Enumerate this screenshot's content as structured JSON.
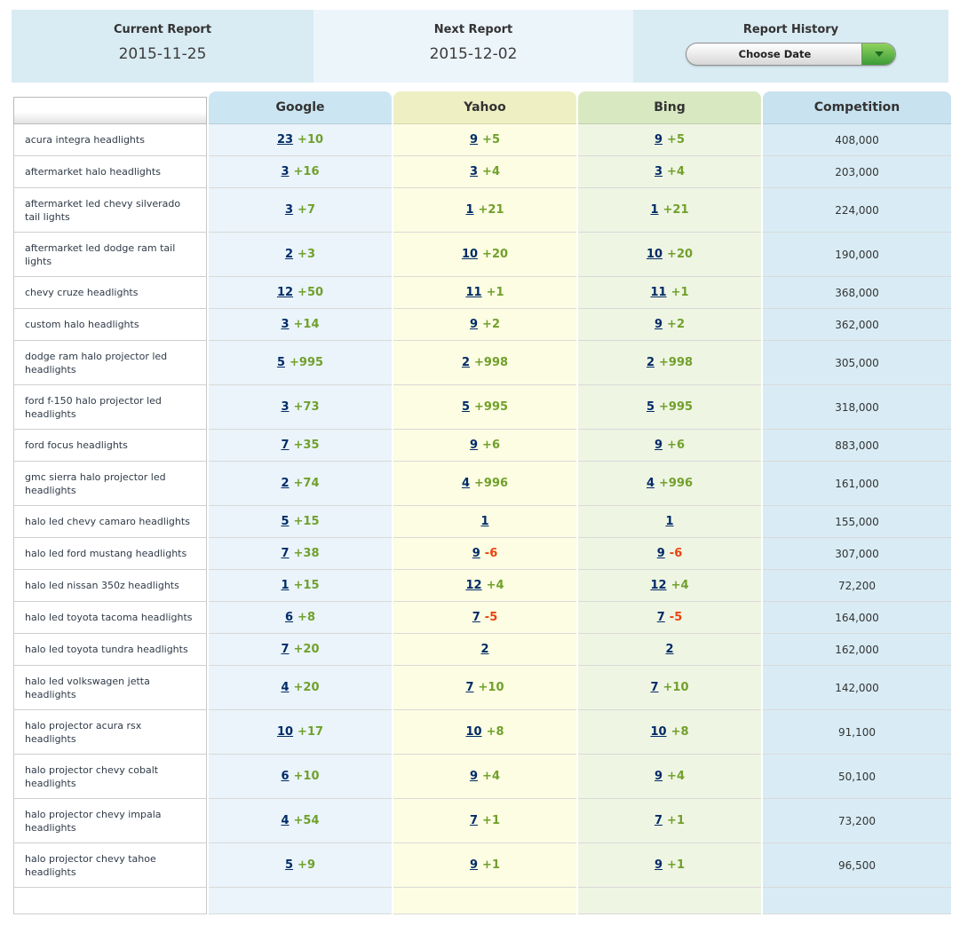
{
  "report_bar": {
    "current": {
      "label": "Current Report",
      "date": "2015-11-25"
    },
    "next": {
      "label": "Next Report",
      "date": "2015-12-02"
    },
    "history": {
      "label": "Report History",
      "button_label": "Choose Date"
    }
  },
  "colors": {
    "bar_panel_dark": "#d9ebf3",
    "bar_panel_light": "#ecf5fa",
    "google_header": "#cbe6f2",
    "yahoo_header": "#eef0c3",
    "bing_header": "#d8e8c1",
    "competition_header": "#c8e2ef",
    "google_cell": "#eaf4fa",
    "yahoo_cell": "#fcfde2",
    "bing_cell": "#eff5e3",
    "competition_cell": "#d9ecf5",
    "rank_link": "#002b67",
    "positive_change": "#71a02c",
    "negative_change": "#e8430f",
    "choose_date_green": "#3c9c38"
  },
  "table": {
    "columns": [
      "",
      "Google",
      "Yahoo",
      "Bing",
      "Competition"
    ],
    "rows": [
      {
        "keyword": "acura integra headlights",
        "google": {
          "rank": "23",
          "change": "+10"
        },
        "yahoo": {
          "rank": "9",
          "change": "+5"
        },
        "bing": {
          "rank": "9",
          "change": "+5"
        },
        "competition": "408,000"
      },
      {
        "keyword": "aftermarket halo headlights",
        "google": {
          "rank": "3",
          "change": "+16"
        },
        "yahoo": {
          "rank": "3",
          "change": "+4"
        },
        "bing": {
          "rank": "3",
          "change": "+4"
        },
        "competition": "203,000"
      },
      {
        "keyword": "aftermarket led chevy silverado tail lights",
        "google": {
          "rank": "3",
          "change": "+7"
        },
        "yahoo": {
          "rank": "1",
          "change": "+21"
        },
        "bing": {
          "rank": "1",
          "change": "+21"
        },
        "competition": "224,000"
      },
      {
        "keyword": "aftermarket led dodge ram tail lights",
        "google": {
          "rank": "2",
          "change": "+3"
        },
        "yahoo": {
          "rank": "10",
          "change": "+20"
        },
        "bing": {
          "rank": "10",
          "change": "+20"
        },
        "competition": "190,000"
      },
      {
        "keyword": "chevy cruze headlights",
        "google": {
          "rank": "12",
          "change": "+50"
        },
        "yahoo": {
          "rank": "11",
          "change": "+1"
        },
        "bing": {
          "rank": "11",
          "change": "+1"
        },
        "competition": "368,000"
      },
      {
        "keyword": "custom halo headlights",
        "google": {
          "rank": "3",
          "change": "+14"
        },
        "yahoo": {
          "rank": "9",
          "change": "+2"
        },
        "bing": {
          "rank": "9",
          "change": "+2"
        },
        "competition": "362,000"
      },
      {
        "keyword": "dodge ram halo projector led headlights",
        "google": {
          "rank": "5",
          "change": "+995"
        },
        "yahoo": {
          "rank": "2",
          "change": "+998"
        },
        "bing": {
          "rank": "2",
          "change": "+998"
        },
        "competition": "305,000"
      },
      {
        "keyword": "ford f-150 halo projector led headlights",
        "google": {
          "rank": "3",
          "change": "+73"
        },
        "yahoo": {
          "rank": "5",
          "change": "+995"
        },
        "bing": {
          "rank": "5",
          "change": "+995"
        },
        "competition": "318,000"
      },
      {
        "keyword": "ford focus headlights",
        "google": {
          "rank": "7",
          "change": "+35"
        },
        "yahoo": {
          "rank": "9",
          "change": "+6"
        },
        "bing": {
          "rank": "9",
          "change": "+6"
        },
        "competition": "883,000"
      },
      {
        "keyword": "gmc sierra halo projector led headlights",
        "google": {
          "rank": "2",
          "change": "+74"
        },
        "yahoo": {
          "rank": "4",
          "change": "+996"
        },
        "bing": {
          "rank": "4",
          "change": "+996"
        },
        "competition": "161,000"
      },
      {
        "keyword": "halo led chevy camaro headlights",
        "google": {
          "rank": "5",
          "change": "+15"
        },
        "yahoo": {
          "rank": "1",
          "change": ""
        },
        "bing": {
          "rank": "1",
          "change": ""
        },
        "competition": "155,000"
      },
      {
        "keyword": "halo led ford mustang headlights",
        "google": {
          "rank": "7",
          "change": "+38"
        },
        "yahoo": {
          "rank": "9",
          "change": "-6"
        },
        "bing": {
          "rank": "9",
          "change": "-6"
        },
        "competition": "307,000"
      },
      {
        "keyword": "halo led nissan 350z headlights",
        "google": {
          "rank": "1",
          "change": "+15"
        },
        "yahoo": {
          "rank": "12",
          "change": "+4"
        },
        "bing": {
          "rank": "12",
          "change": "+4"
        },
        "competition": "72,200"
      },
      {
        "keyword": "halo led toyota tacoma headlights",
        "google": {
          "rank": "6",
          "change": "+8"
        },
        "yahoo": {
          "rank": "7",
          "change": "-5"
        },
        "bing": {
          "rank": "7",
          "change": "-5"
        },
        "competition": "164,000"
      },
      {
        "keyword": "halo led toyota tundra headlights",
        "google": {
          "rank": "7",
          "change": "+20"
        },
        "yahoo": {
          "rank": "2",
          "change": ""
        },
        "bing": {
          "rank": "2",
          "change": ""
        },
        "competition": "162,000"
      },
      {
        "keyword": "halo led volkswagen jetta headlights",
        "google": {
          "rank": "4",
          "change": "+20"
        },
        "yahoo": {
          "rank": "7",
          "change": "+10"
        },
        "bing": {
          "rank": "7",
          "change": "+10"
        },
        "competition": "142,000"
      },
      {
        "keyword": "halo projector acura rsx headlights",
        "google": {
          "rank": "10",
          "change": "+17"
        },
        "yahoo": {
          "rank": "10",
          "change": "+8"
        },
        "bing": {
          "rank": "10",
          "change": "+8"
        },
        "competition": "91,100"
      },
      {
        "keyword": "halo projector chevy cobalt headlights",
        "google": {
          "rank": "6",
          "change": "+10"
        },
        "yahoo": {
          "rank": "9",
          "change": "+4"
        },
        "bing": {
          "rank": "9",
          "change": "+4"
        },
        "competition": "50,100"
      },
      {
        "keyword": "halo projector chevy impala headlights",
        "google": {
          "rank": "4",
          "change": "+54"
        },
        "yahoo": {
          "rank": "7",
          "change": "+1"
        },
        "bing": {
          "rank": "7",
          "change": "+1"
        },
        "competition": "73,200"
      },
      {
        "keyword": "halo projector chevy tahoe headlights",
        "google": {
          "rank": "5",
          "change": "+9"
        },
        "yahoo": {
          "rank": "9",
          "change": "+1"
        },
        "bing": {
          "rank": "9",
          "change": "+1"
        },
        "competition": "96,500"
      },
      {
        "keyword": "",
        "google": {
          "rank": "",
          "change": ""
        },
        "yahoo": {
          "rank": "",
          "change": ""
        },
        "bing": {
          "rank": "",
          "change": ""
        },
        "competition": "",
        "partial": true
      }
    ]
  }
}
